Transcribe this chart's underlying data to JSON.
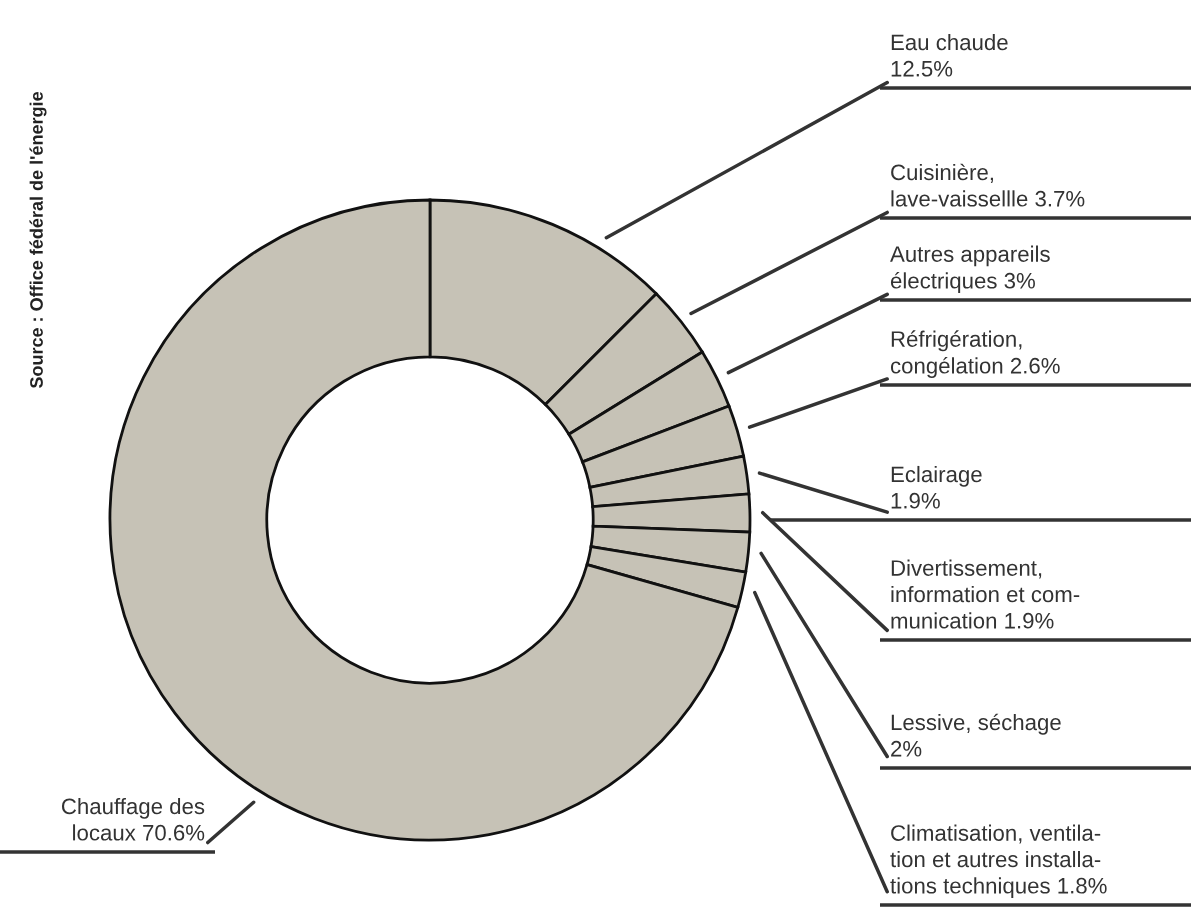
{
  "chart_data": {
    "type": "donut",
    "categories": [
      "Eau chaude",
      "Cuisinière,\nlave-vaissellle",
      "Autres appareils\nélectriques",
      "Réfrigération,\ncongélation",
      "Eclairage",
      "Divertissement,\ninformation et com-\nmunication",
      "Lessive, séchage",
      "Climatisation, ventila-\ntion et autres installa-\ntions techniques",
      "Chauffage des\nlocaux"
    ],
    "values": [
      12.5,
      3.7,
      3,
      2.6,
      1.9,
      1.9,
      2,
      1.8,
      70.6
    ],
    "value_labels": [
      "12.5%",
      "3.7%",
      "3%",
      "2.6%",
      "1.9%",
      "1.9%",
      "2%",
      "1.8%",
      "70.6%"
    ],
    "colors": [
      "#c6c2b6",
      "#c6c2b6",
      "#c6c2b6",
      "#c6c2b6",
      "#c6c2b6",
      "#c6c2b6",
      "#c6c2b6",
      "#c6c2b6",
      "#c6c2b6"
    ],
    "annotations": [
      "Source : Office fédéral de l'énergie"
    ],
    "legend": false
  }
}
